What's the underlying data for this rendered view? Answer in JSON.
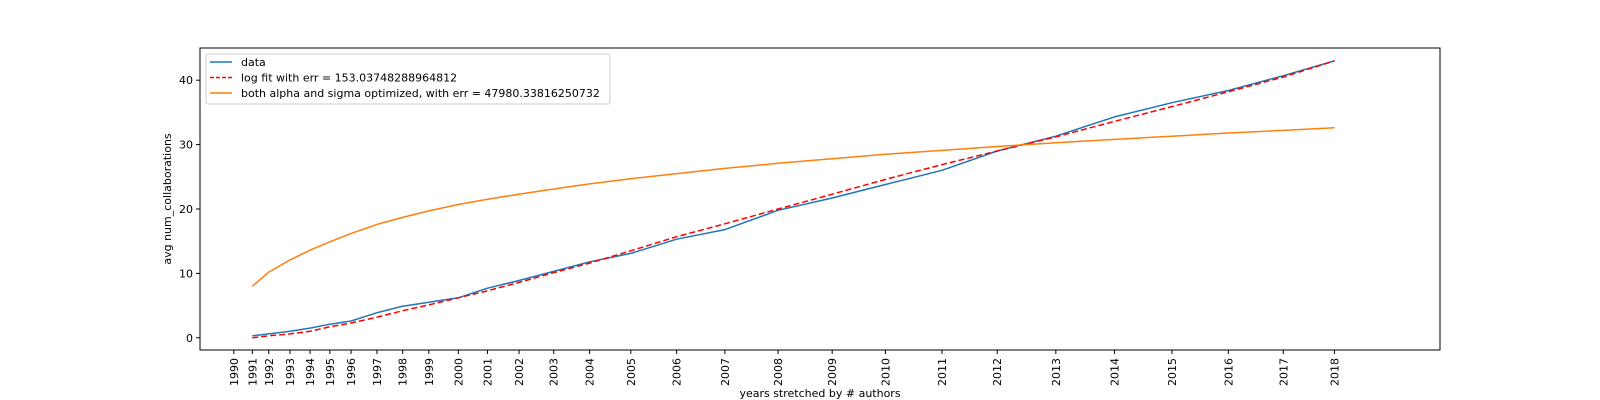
{
  "chart_data": {
    "type": "line",
    "title": "",
    "xlabel": "years stretched by # authors",
    "ylabel": "avg num_collaborations",
    "ylim": [
      -1.9,
      45
    ],
    "yticks": [
      0,
      10,
      20,
      30,
      40
    ],
    "x_ticks": [
      {
        "label": "1990",
        "pos": 0.0
      },
      {
        "label": "1991",
        "pos": 0.82
      },
      {
        "label": "1992",
        "pos": 1.55
      },
      {
        "label": "1993",
        "pos": 2.49
      },
      {
        "label": "1994",
        "pos": 3.38
      },
      {
        "label": "1995",
        "pos": 4.26
      },
      {
        "label": "1996",
        "pos": 5.2
      },
      {
        "label": "1997",
        "pos": 6.35
      },
      {
        "label": "1998",
        "pos": 7.49
      },
      {
        "label": "1999",
        "pos": 8.65
      },
      {
        "label": "2000",
        "pos": 9.96
      },
      {
        "label": "2001",
        "pos": 11.25
      },
      {
        "label": "2002",
        "pos": 12.65
      },
      {
        "label": "2003",
        "pos": 14.19
      },
      {
        "label": "2004",
        "pos": 15.78
      },
      {
        "label": "2005",
        "pos": 17.61
      },
      {
        "label": "2006",
        "pos": 19.64
      },
      {
        "label": "2007",
        "pos": 21.78
      },
      {
        "label": "2008",
        "pos": 24.14
      },
      {
        "label": "2009",
        "pos": 26.54
      },
      {
        "label": "2010",
        "pos": 28.9
      },
      {
        "label": "2011",
        "pos": 31.41
      },
      {
        "label": "2012",
        "pos": 33.86
      },
      {
        "label": "2013",
        "pos": 36.46
      },
      {
        "label": "2014",
        "pos": 39.06
      },
      {
        "label": "2015",
        "pos": 41.61
      },
      {
        "label": "2016",
        "pos": 44.11
      },
      {
        "label": "2017",
        "pos": 46.55
      },
      {
        "label": "2018",
        "pos": 48.82
      }
    ],
    "xlim": [
      -1.5,
      53.5
    ],
    "series": [
      {
        "name": "data",
        "color": "#1f77b4",
        "dash": "",
        "x": [
          0.82,
          1.55,
          2.49,
          3.38,
          4.26,
          5.2,
          6.35,
          7.49,
          8.65,
          9.96,
          11.25,
          12.65,
          14.19,
          15.78,
          17.61,
          19.64,
          21.78,
          24.14,
          26.54,
          28.9,
          31.41,
          33.86,
          36.46,
          39.06,
          41.61,
          44.11,
          46.55,
          48.82
        ],
        "y": [
          0.3,
          0.6,
          1.0,
          1.5,
          2.1,
          2.6,
          3.9,
          4.9,
          5.5,
          6.2,
          7.7,
          8.9,
          10.3,
          11.8,
          13.1,
          15.3,
          16.8,
          19.8,
          21.7,
          23.8,
          26.0,
          29.0,
          31.3,
          34.3,
          36.5,
          38.4,
          40.7,
          43.0
        ]
      },
      {
        "name": "log fit with err = 153.03748288964812",
        "color": "#ff0000",
        "dash": "6,3",
        "x": [
          0.82,
          1.55,
          2.49,
          3.38,
          4.26,
          5.2,
          6.35,
          7.49,
          8.65,
          9.96,
          11.25,
          12.65,
          14.19,
          15.78,
          17.61,
          19.64,
          21.78,
          24.14,
          26.54,
          28.9,
          31.41,
          33.86,
          36.46,
          39.06,
          41.61,
          44.11,
          46.55,
          48.82
        ],
        "y": [
          0.0,
          0.3,
          0.6,
          1.0,
          1.7,
          2.3,
          3.2,
          4.2,
          5.1,
          6.2,
          7.3,
          8.6,
          10.1,
          11.6,
          13.5,
          15.7,
          17.7,
          20.0,
          22.3,
          24.6,
          26.9,
          29.0,
          31.2,
          33.6,
          35.9,
          38.2,
          40.5,
          43.0
        ]
      },
      {
        "name": "both alpha and sigma optimized, with err = 47980.33816250732",
        "color": "#ff7f0e",
        "dash": "",
        "x": [
          0.82,
          1.55,
          2.49,
          3.38,
          4.26,
          5.2,
          6.35,
          7.49,
          8.65,
          9.96,
          11.25,
          12.65,
          14.19,
          15.78,
          17.61,
          19.64,
          21.78,
          24.14,
          26.54,
          28.9,
          31.41,
          33.86,
          36.46,
          39.06,
          41.61,
          44.11,
          46.55,
          48.82
        ],
        "y": [
          8.0,
          10.2,
          12.1,
          13.6,
          14.9,
          16.2,
          17.6,
          18.7,
          19.7,
          20.7,
          21.5,
          22.3,
          23.1,
          23.9,
          24.7,
          25.5,
          26.3,
          27.1,
          27.8,
          28.5,
          29.1,
          29.7,
          30.3,
          30.8,
          31.3,
          31.8,
          32.2,
          32.6
        ]
      }
    ],
    "legend": "top-left"
  }
}
